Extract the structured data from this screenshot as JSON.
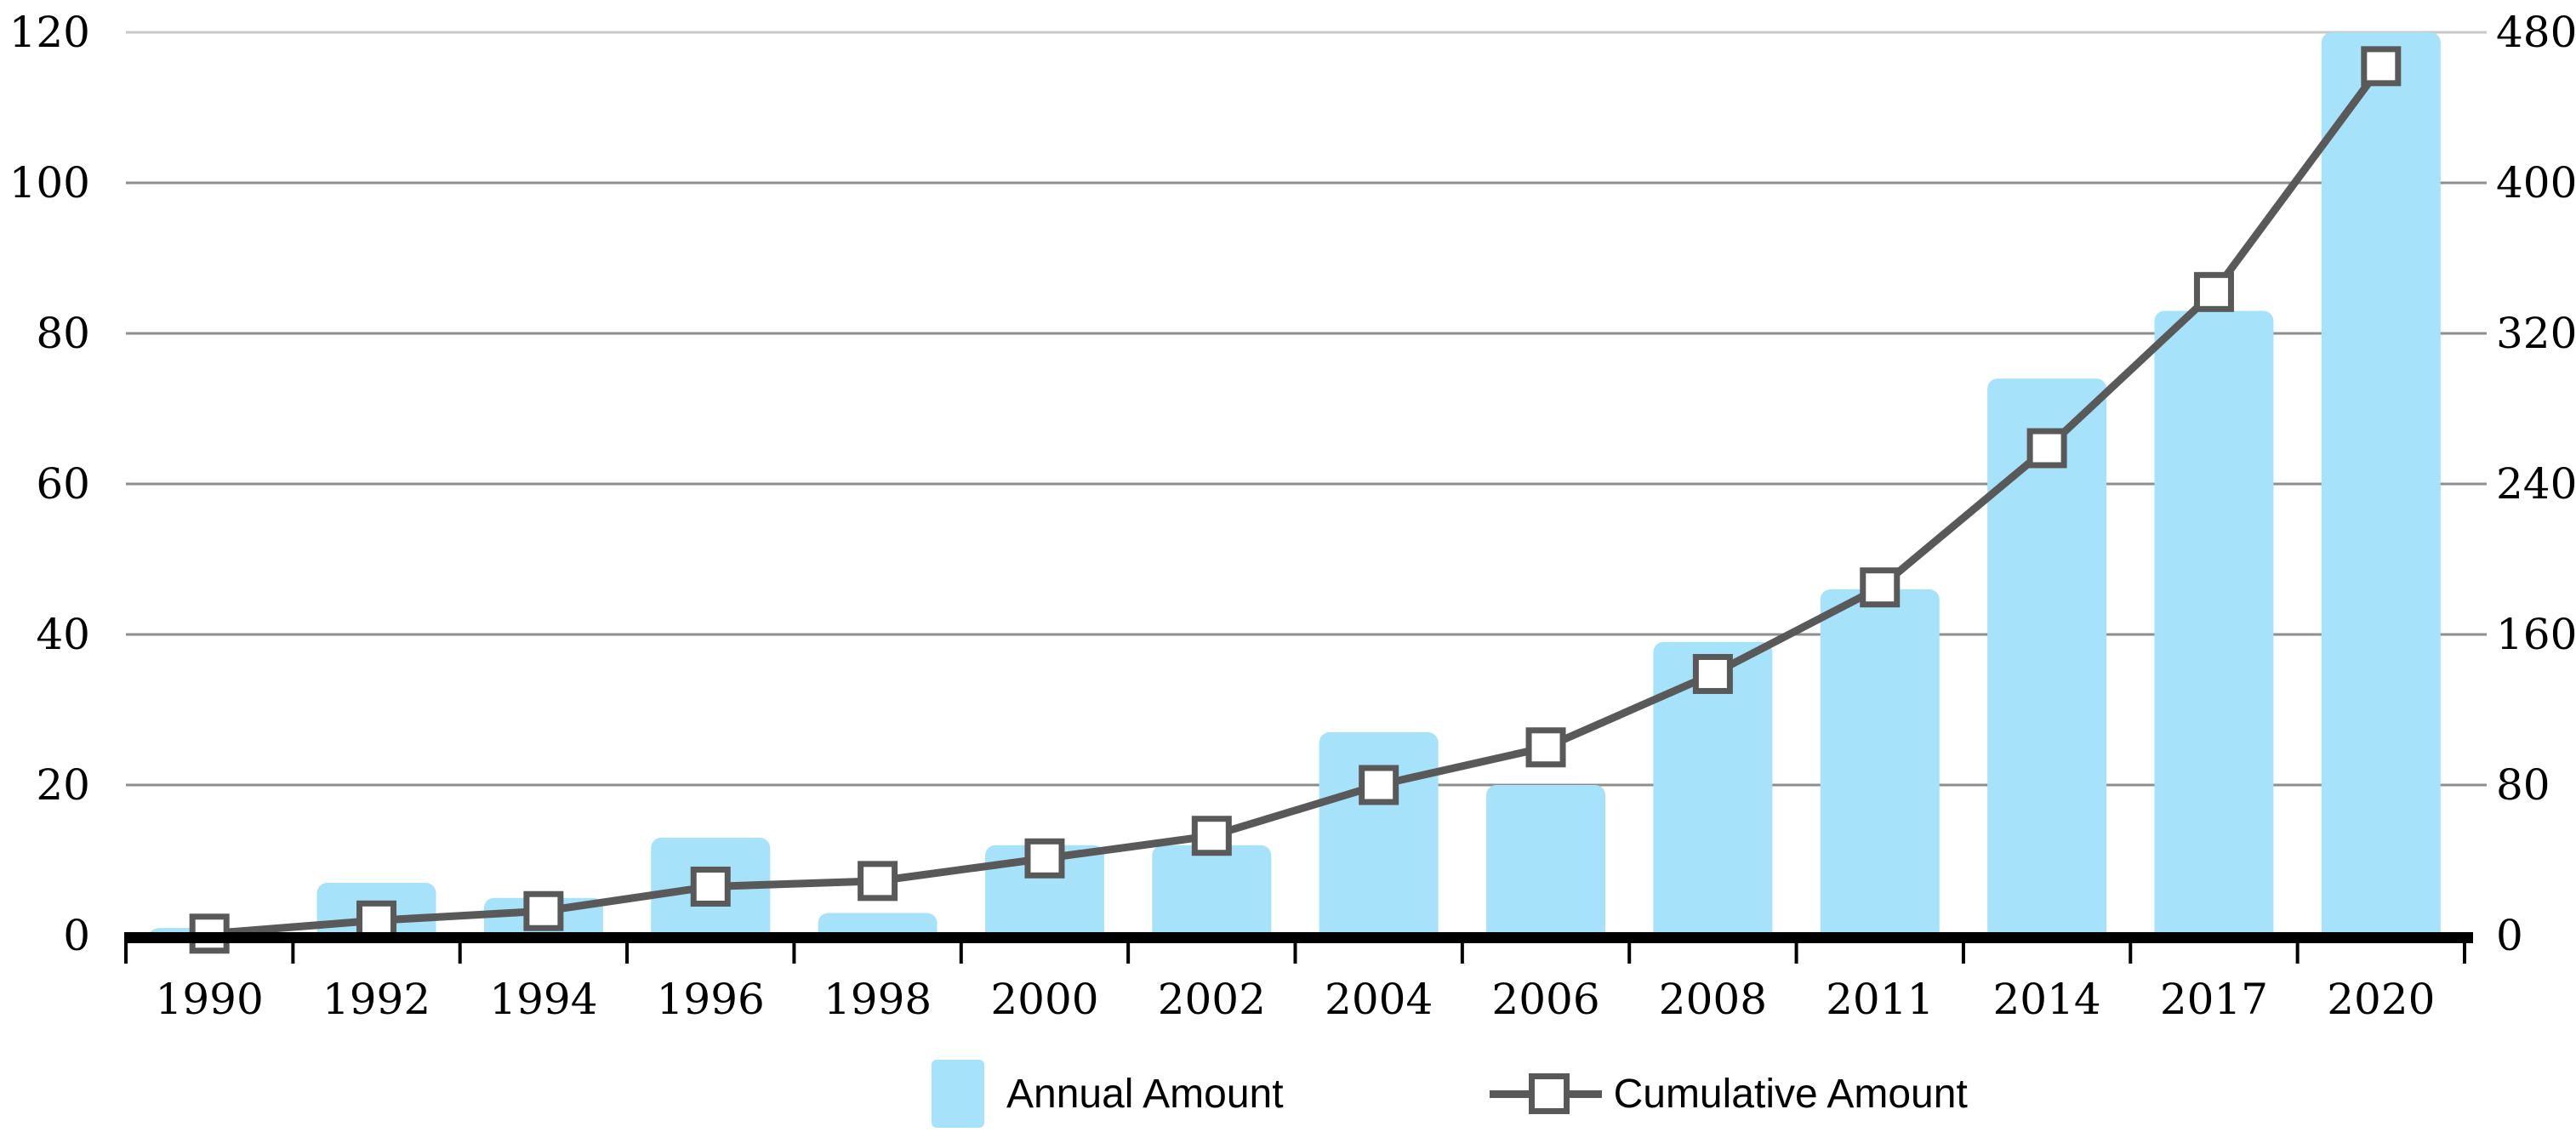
{
  "chart_data": {
    "type": "combo-bar-line",
    "title": "",
    "categories": [
      "1990",
      "1992",
      "1994",
      "1996",
      "1998",
      "2000",
      "2002",
      "2004",
      "2006",
      "2008",
      "2011",
      "2014",
      "2017",
      "2020"
    ],
    "series": [
      {
        "name": "Annual Amount",
        "type": "bar",
        "axis": "left",
        "values": [
          1,
          7,
          5,
          13,
          3,
          12,
          12,
          27,
          20,
          39,
          46,
          74,
          83,
          120
        ]
      },
      {
        "name": "Cumulative Amount",
        "type": "line",
        "axis": "right",
        "marker": "square",
        "values": [
          1,
          8,
          13,
          26,
          29,
          41,
          53,
          80,
          100,
          139,
          185,
          259,
          342,
          462
        ]
      }
    ],
    "left_axis": {
      "min": 0,
      "max": 120,
      "ticks": [
        0,
        20,
        40,
        60,
        80,
        100,
        120
      ]
    },
    "right_axis": {
      "min": 0,
      "max": 480,
      "ticks": [
        0,
        80,
        160,
        240,
        320,
        400,
        480
      ]
    },
    "grid": "horizontal",
    "legend_position": "bottom-center"
  },
  "colors": {
    "bar_fill": "#A6E3FA",
    "line": "#595959",
    "marker_fill": "#ffffff",
    "marker_border": "#595959",
    "gridline": "#8E8E8E",
    "gridline_top": "#C8C8C8",
    "axis_line": "#000000",
    "text": "#000000",
    "background": "#ffffff"
  },
  "legend": {
    "annual_label": "Annual Amount",
    "cumulative_label": "Cumulative Amount"
  }
}
